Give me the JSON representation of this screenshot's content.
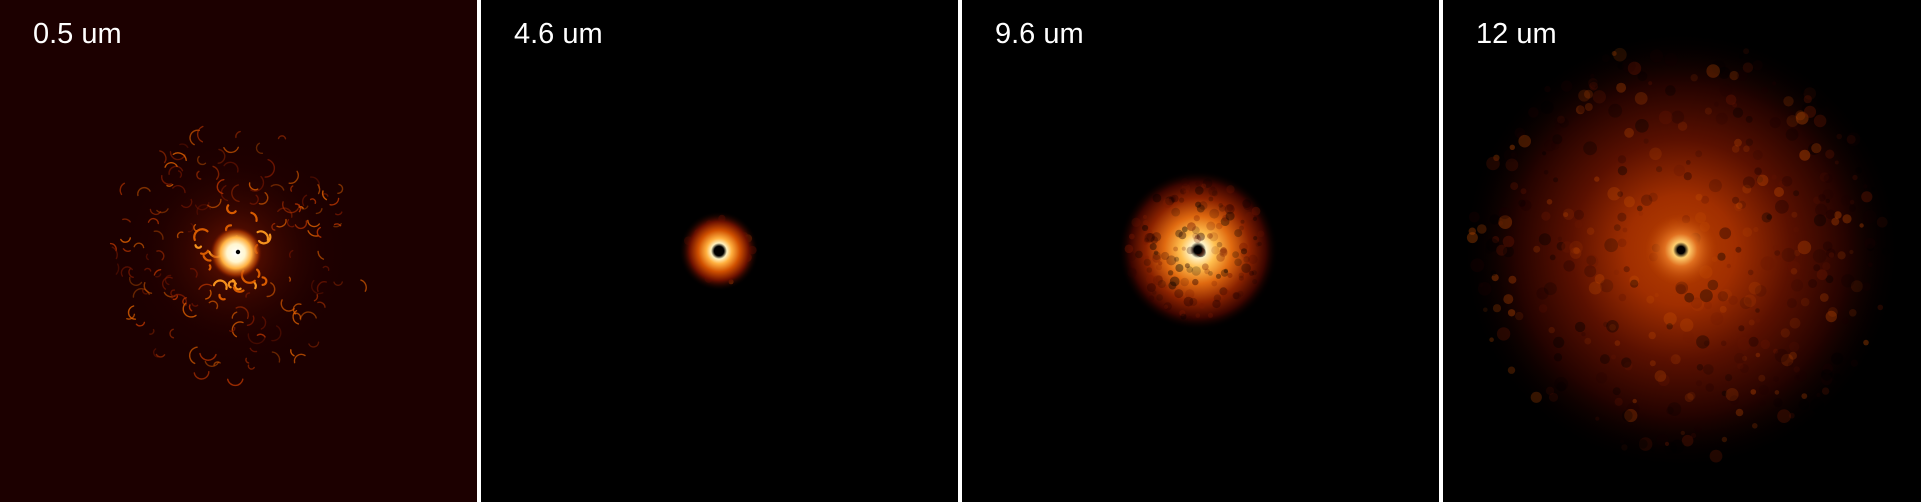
{
  "panels": [
    {
      "label": "0.5 um",
      "background": "#1c0000"
    },
    {
      "label": "4.6 um",
      "background": "#000000"
    },
    {
      "label": "9.6 um",
      "background": "#000000"
    },
    {
      "label": "12 um",
      "background": "#000000"
    }
  ],
  "colormap": [
    "#000000",
    "#3a0500",
    "#8a1d00",
    "#d45500",
    "#ffa830",
    "#fff3c0",
    "#ffffff"
  ]
}
